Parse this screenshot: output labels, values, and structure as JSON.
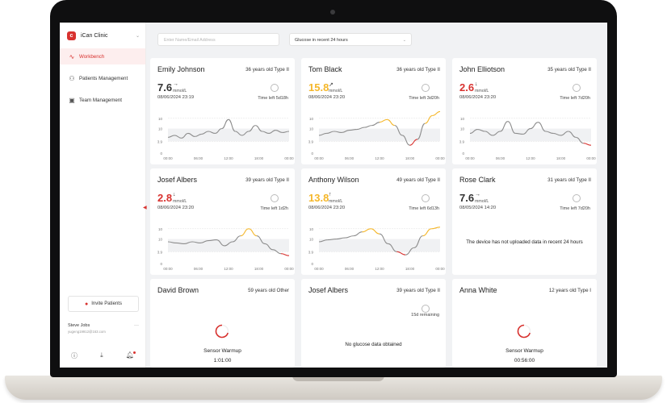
{
  "app": {
    "name": "iCan Clinic"
  },
  "colors": {
    "accent": "#d8322f",
    "high": "#f5b72a",
    "low": "#d8322f",
    "normal": "#8c8c8c",
    "normal_value": "#333333"
  },
  "sidebar": {
    "items": [
      {
        "label": "Workbench",
        "icon": "pulse-icon",
        "active": true
      },
      {
        "label": "Patients Management",
        "icon": "users-icon",
        "active": false
      },
      {
        "label": "Team Management",
        "icon": "team-icon",
        "active": false
      }
    ],
    "invite_label": "Invite Patients",
    "user": {
      "name": "Steve Jobs",
      "email": "yugeng19912@163.com"
    }
  },
  "toolbar": {
    "search_placeholder": "Enter Name/Email Address",
    "filter_value": "Glucose in recent 24 hours"
  },
  "chart_axes": {
    "y_ticks": [
      "10",
      "10",
      "3.9",
      "0"
    ],
    "x_ticks": [
      "00:00",
      "06:00",
      "12:00",
      "18:00",
      "00:00"
    ]
  },
  "patients": [
    {
      "name": "Emily Johnson",
      "meta": "36 years old  Type II",
      "value": "7.6",
      "arrow": "→",
      "unit": "mmol/L",
      "time": "08/06/2024 23:19",
      "time_left": "Time left 5d18h",
      "state": "normal",
      "trend": [
        0.4,
        0.45,
        0.38,
        0.5,
        0.42,
        0.48,
        0.55,
        0.5,
        0.62,
        0.85,
        0.55,
        0.45,
        0.55,
        0.7,
        0.55,
        0.5,
        0.58,
        0.52,
        0.55
      ]
    },
    {
      "name": "Tom Black",
      "meta": "36 years old  Type II",
      "value": "15.8",
      "arrow": "↗",
      "unit": "mmol/L",
      "time": "08/06/2024 23:20",
      "time_left": "Time left 3d20h",
      "state": "high",
      "trend": [
        0.45,
        0.5,
        0.55,
        0.52,
        0.58,
        0.6,
        0.65,
        0.7,
        0.78,
        0.85,
        0.7,
        0.45,
        0.2,
        0.35,
        0.75,
        0.95,
        1.05
      ]
    },
    {
      "name": "John Elliotson",
      "meta": "35 years old  Type II",
      "value": "2.6",
      "arrow": "↓",
      "unit": "mmol/L",
      "time": "08/06/2024 23:20",
      "time_left": "Time left 7d20h",
      "state": "low",
      "trend": [
        0.5,
        0.6,
        0.55,
        0.45,
        0.55,
        0.8,
        0.5,
        0.48,
        0.62,
        0.78,
        0.55,
        0.5,
        0.45,
        0.55,
        0.4,
        0.25,
        0.2
      ]
    },
    {
      "name": "Josef Albers",
      "meta": "39 years old  Type II",
      "value": "2.8",
      "arrow": "↓",
      "unit": "mmol/L",
      "time": "08/06/2024 23:20",
      "time_left": "Time left 1d2h",
      "state": "low",
      "trend": [
        0.55,
        0.52,
        0.5,
        0.55,
        0.52,
        0.58,
        0.6,
        0.45,
        0.55,
        0.7,
        0.88,
        0.7,
        0.5,
        0.35,
        0.25,
        0.2
      ]
    },
    {
      "name": "Anthony Wilson",
      "meta": "49 years old  Type II",
      "value": "13.8",
      "arrow": "↑",
      "unit": "mmol/L",
      "time": "08/06/2024 23:20",
      "time_left": "Time left 6d13h",
      "state": "high",
      "trend": [
        0.55,
        0.6,
        0.62,
        0.65,
        0.7,
        0.8,
        0.88,
        0.75,
        0.5,
        0.3,
        0.22,
        0.4,
        0.7,
        0.88,
        0.92
      ]
    },
    {
      "name": "Rose Clark",
      "meta": "31 years old  Type II",
      "value": "7.6",
      "arrow": "→",
      "unit": "mmol/L",
      "time": "08/05/2024 14:20",
      "time_left": "Time left 7d20h",
      "state": "normal",
      "message": "The device has not uploaded data in recent 24 hours"
    },
    {
      "name": "David Brown",
      "meta": "59 years old  Other",
      "status": "Sensor Warmup",
      "countdown": "1:01:00"
    },
    {
      "name": "Josef Albers",
      "meta": "39 years old  Type II",
      "remaining": "15d remaining",
      "message": "No glucose data obtained"
    },
    {
      "name": "Anna White",
      "meta": "12 years old  Type I",
      "status": "Sensor Warmup",
      "countdown": "00:56:00"
    }
  ]
}
